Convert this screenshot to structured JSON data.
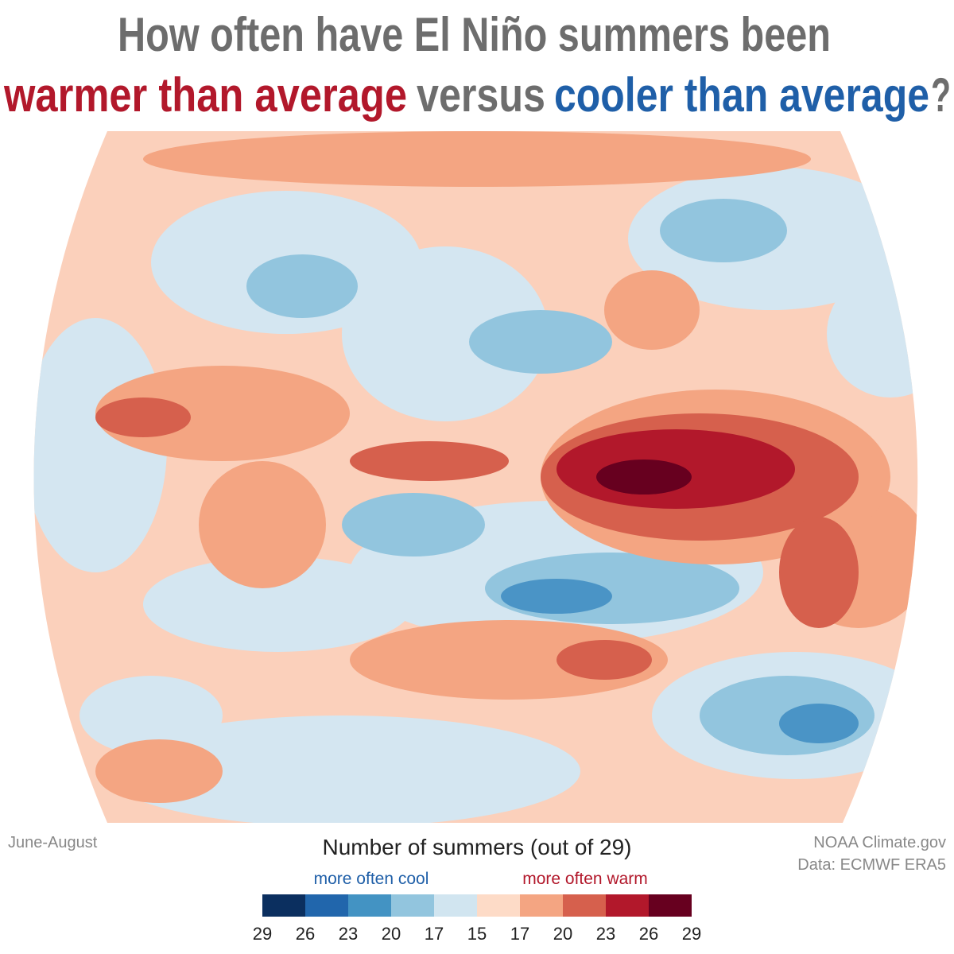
{
  "title": {
    "line1": "How often have El Niño summers been",
    "warm": "warmer than average",
    "versus": "versus",
    "cool": "cooler than average",
    "end": "?"
  },
  "season": "June-August",
  "credit": [
    "NOAA Climate.gov",
    "Data: ECMWF ERA5"
  ],
  "legend": {
    "title": "Number of summers (out of 29)",
    "cool_label": "more often cool",
    "warm_label": "more often warm",
    "colors": [
      "#0b2f5f",
      "#2166ac",
      "#4393c3",
      "#92c5de",
      "#d1e5f0",
      "#fddbc7",
      "#f4a582",
      "#d6604d",
      "#b2182b",
      "#67001f"
    ],
    "ticks": [
      "29",
      "26",
      "23",
      "20",
      "17",
      "15",
      "17",
      "20",
      "23",
      "26",
      "29"
    ]
  }
}
